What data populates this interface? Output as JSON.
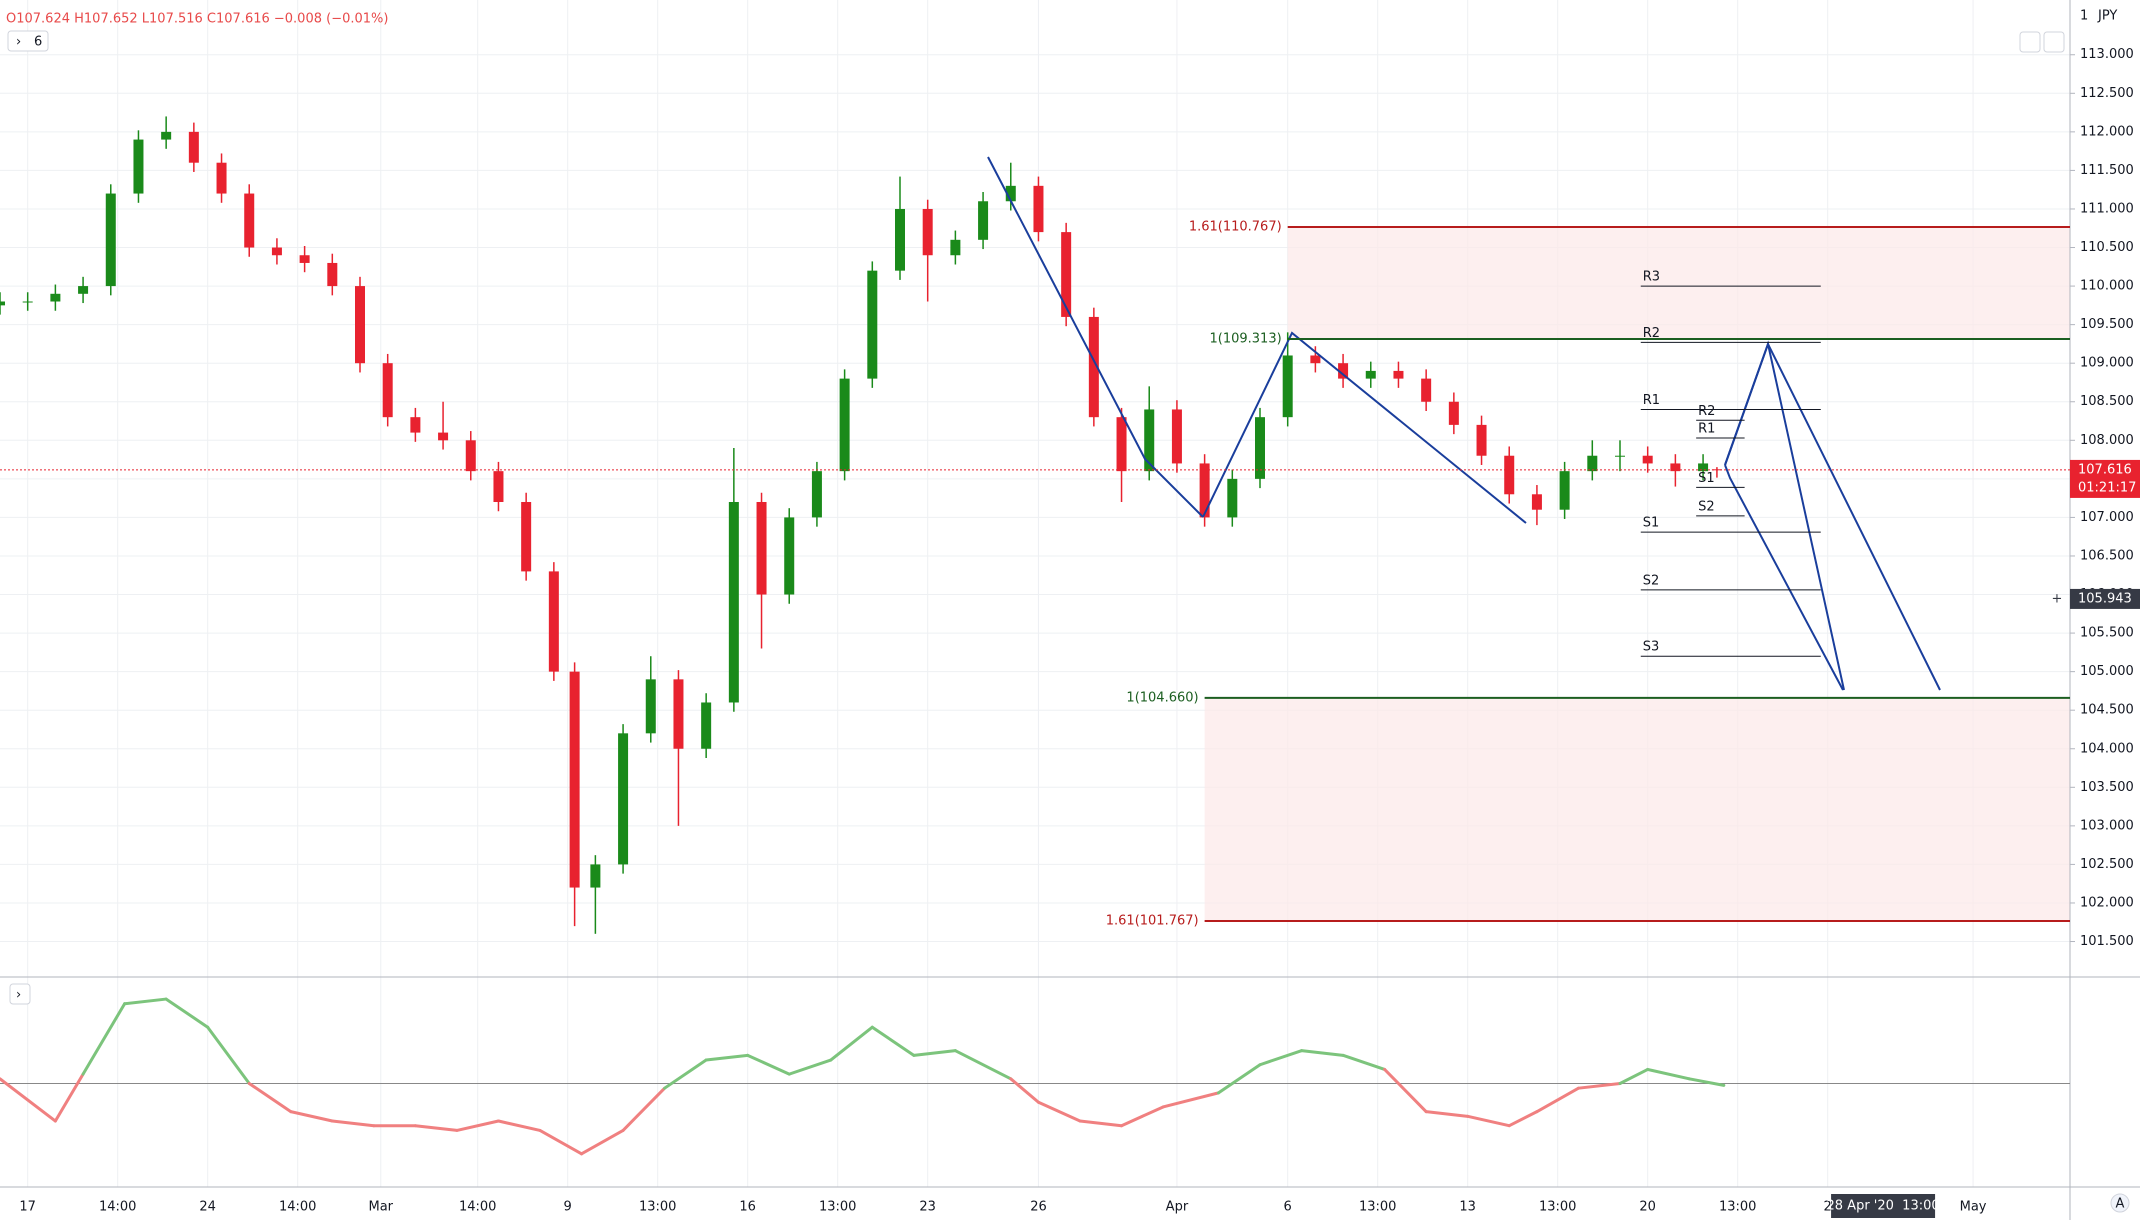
{
  "chart_data": {
    "type": "candlestick",
    "ohlc_text": "O107.624 H107.652 L107.516 C107.616 −0.008 (−0.01%)",
    "interval_button": "6",
    "currency": "JPY",
    "scale_mark": "1",
    "up_color": "#26a69a",
    "candle_up_color": "#1a8a1a",
    "candle_down_color": "#e8222f",
    "x": [
      0,
      4,
      8,
      12,
      16,
      20,
      24,
      28,
      32,
      36,
      40,
      44,
      48,
      52,
      56,
      60,
      64,
      68,
      72,
      76,
      80,
      83,
      86,
      90,
      94,
      98,
      102,
      106,
      110,
      114,
      118,
      122,
      126,
      130,
      134,
      138,
      142,
      146,
      150,
      154,
      158,
      162,
      166,
      170,
      174,
      178,
      182,
      186,
      190,
      194,
      198,
      202,
      206,
      210,
      214,
      218,
      222,
      226,
      230,
      234,
      238,
      242,
      246,
      248
    ],
    "open": [
      109.75,
      109.8,
      109.8,
      109.9,
      110.0,
      111.2,
      111.9,
      112.0,
      111.6,
      111.2,
      110.5,
      110.4,
      110.3,
      110.0,
      109.0,
      108.3,
      108.1,
      108.0,
      107.6,
      107.2,
      106.3,
      105.0,
      102.2,
      102.5,
      104.2,
      104.9,
      104.0,
      104.6,
      107.2,
      106.0,
      107.0,
      107.6,
      108.8,
      110.2,
      111.0,
      110.4,
      110.6,
      111.1,
      111.3,
      110.7,
      109.6,
      108.3,
      107.6,
      108.4,
      107.7,
      107.0,
      107.5,
      108.3,
      109.1,
      109.0,
      108.8,
      108.9,
      108.8,
      108.5,
      108.2,
      107.8,
      107.3,
      107.1,
      107.6,
      107.8,
      107.8,
      107.7,
      107.6,
      107.624
    ],
    "high": [
      109.92,
      109.92,
      110.02,
      110.12,
      111.32,
      112.02,
      112.2,
      112.12,
      111.72,
      111.32,
      110.62,
      110.52,
      110.42,
      110.12,
      109.12,
      108.42,
      108.5,
      108.12,
      107.72,
      107.32,
      106.42,
      105.12,
      102.62,
      104.32,
      105.2,
      105.02,
      104.72,
      107.9,
      107.32,
      107.12,
      107.72,
      108.92,
      110.32,
      111.42,
      111.12,
      110.72,
      111.22,
      111.6,
      111.42,
      110.82,
      109.72,
      108.42,
      108.7,
      108.52,
      107.82,
      107.62,
      108.42,
      109.4,
      109.22,
      109.12,
      109.02,
      109.02,
      108.92,
      108.62,
      108.32,
      107.92,
      107.42,
      107.72,
      108.0,
      108.0,
      107.92,
      107.82,
      107.82,
      107.652
    ],
    "low": [
      109.63,
      109.68,
      109.68,
      109.78,
      109.88,
      111.08,
      111.78,
      111.48,
      111.08,
      110.38,
      110.28,
      110.18,
      109.88,
      108.88,
      108.18,
      107.98,
      107.88,
      107.48,
      107.08,
      106.18,
      104.88,
      101.7,
      101.6,
      102.38,
      104.08,
      103.0,
      103.88,
      104.48,
      105.3,
      105.88,
      106.88,
      107.48,
      108.68,
      110.08,
      109.8,
      110.28,
      110.48,
      110.98,
      110.58,
      109.48,
      108.18,
      107.2,
      107.48,
      107.58,
      106.88,
      106.88,
      107.38,
      108.18,
      108.88,
      108.68,
      108.68,
      108.68,
      108.38,
      108.08,
      107.68,
      107.18,
      106.9,
      106.98,
      107.48,
      107.6,
      107.58,
      107.4,
      107.48,
      107.516
    ],
    "close": [
      109.8,
      109.8,
      109.9,
      110.0,
      111.2,
      111.9,
      112.0,
      111.6,
      111.2,
      110.5,
      110.4,
      110.3,
      110.0,
      109.0,
      108.3,
      108.1,
      108.0,
      107.6,
      107.2,
      106.3,
      105.0,
      102.2,
      102.5,
      104.2,
      104.9,
      104.0,
      104.6,
      107.2,
      106.0,
      107.0,
      107.6,
      108.8,
      110.2,
      111.0,
      110.4,
      110.6,
      111.1,
      111.3,
      110.7,
      109.6,
      108.3,
      107.6,
      108.4,
      107.7,
      107.0,
      107.5,
      108.3,
      109.1,
      109.0,
      108.8,
      108.9,
      108.8,
      108.5,
      108.2,
      107.8,
      107.3,
      107.1,
      107.6,
      107.8,
      107.8,
      107.7,
      107.6,
      107.7,
      107.616
    ],
    "last_price_label": "107.616",
    "countdown_label": "01:21:17",
    "crosshair_price_label": "105.943",
    "crosshair_price": 105.943,
    "crosshair_time_label": "28 Apr '20  13:00",
    "crosshair_x": 272,
    "xlim": [
      0,
      299
    ],
    "xticks": [
      {
        "value": 4,
        "label": "17"
      },
      {
        "value": 17,
        "label": "14:00"
      },
      {
        "value": 30,
        "label": "24"
      },
      {
        "value": 43,
        "label": "14:00"
      },
      {
        "value": 55,
        "label": "Mar"
      },
      {
        "value": 69,
        "label": "14:00"
      },
      {
        "value": 82,
        "label": "9"
      },
      {
        "value": 95,
        "label": "13:00"
      },
      {
        "value": 108,
        "label": "16"
      },
      {
        "value": 121,
        "label": "13:00"
      },
      {
        "value": 134,
        "label": "23"
      },
      {
        "value": 150,
        "label": "26"
      },
      {
        "value": 170,
        "label": "Apr"
      },
      {
        "value": 186,
        "label": "6"
      },
      {
        "value": 199,
        "label": "13:00"
      },
      {
        "value": 212,
        "label": "13"
      },
      {
        "value": 225,
        "label": "13:00"
      },
      {
        "value": 238,
        "label": "20"
      },
      {
        "value": 251,
        "label": "13:00"
      },
      {
        "value": 264,
        "label": "2"
      },
      {
        "value": 285,
        "label": "May"
      }
    ],
    "ylim": [
      101.04,
      113.71
    ],
    "yticks": [
      {
        "value": 101.5,
        "label": "101.500"
      },
      {
        "value": 102,
        "label": "102.000"
      },
      {
        "value": 102.5,
        "label": "102.500"
      },
      {
        "value": 103,
        "label": "103.000"
      },
      {
        "value": 103.5,
        "label": "103.500"
      },
      {
        "value": 104,
        "label": "104.000"
      },
      {
        "value": 104.5,
        "label": "104.500"
      },
      {
        "value": 105,
        "label": "105.000"
      },
      {
        "value": 105.5,
        "label": "105.500"
      },
      {
        "value": 106,
        "label": "106.000"
      },
      {
        "value": 106.5,
        "label": "106.500"
      },
      {
        "value": 107,
        "label": "107.000"
      },
      {
        "value": 107.5,
        "label": "107.500"
      },
      {
        "value": 108,
        "label": "108.000"
      },
      {
        "value": 108.5,
        "label": "108.500"
      },
      {
        "value": 109,
        "label": "109.000"
      },
      {
        "value": 109.5,
        "label": "109.500"
      },
      {
        "value": 110,
        "label": "110.000"
      },
      {
        "value": 110.5,
        "label": "110.500"
      },
      {
        "value": 111,
        "label": "111.000"
      },
      {
        "value": 111.5,
        "label": "111.500"
      },
      {
        "value": 112,
        "label": "112.000"
      },
      {
        "value": 112.5,
        "label": "112.500"
      },
      {
        "value": 113,
        "label": "113.000"
      }
    ],
    "grid": true,
    "fib_levels": [
      {
        "label": "1.61(110.767)",
        "value": 110.767,
        "start": 186,
        "color": "#b71c1c"
      },
      {
        "label": "1(109.313)",
        "value": 109.313,
        "start": 186,
        "color": "#1b5e20"
      },
      {
        "label": "1(104.660)",
        "value": 104.66,
        "start": 174,
        "color": "#1b5e20"
      },
      {
        "label": "1.61(101.767)",
        "value": 101.767,
        "start": 174,
        "color": "#b71c1c"
      }
    ],
    "pivots": [
      {
        "label": "R3",
        "value": 110.0,
        "start": 237,
        "end": 263
      },
      {
        "label": "R2",
        "value": 109.27,
        "start": 237,
        "end": 263
      },
      {
        "label": "R1",
        "value": 108.4,
        "start": 237,
        "end": 263
      },
      {
        "label": "S1",
        "value": 106.81,
        "start": 237,
        "end": 263
      },
      {
        "label": "S2",
        "value": 106.06,
        "start": 237,
        "end": 263
      },
      {
        "label": "S3",
        "value": 105.2,
        "start": 237,
        "end": 263
      },
      {
        "label": "R2",
        "value": 108.26,
        "start": 245,
        "end": 252
      },
      {
        "label": "R1",
        "value": 108.03,
        "start": 245,
        "end": 252
      },
      {
        "label": "S1",
        "value": 107.39,
        "start": 245,
        "end": 252
      },
      {
        "label": "S2",
        "value": 107.02,
        "start": 245,
        "end": 252
      }
    ],
    "oscillator": {
      "x": [
        0,
        8,
        12,
        18,
        24,
        30,
        36,
        42,
        48,
        54,
        60,
        66,
        72,
        78,
        84,
        90,
        96,
        102,
        108,
        114,
        120,
        126,
        132,
        138,
        146,
        150,
        156,
        162,
        168,
        176,
        182,
        188,
        194,
        200,
        206,
        212,
        218,
        222,
        228,
        234,
        238,
        244,
        249
      ],
      "values": [
        0.05,
        -0.4,
        0.1,
        0.85,
        0.9,
        0.6,
        0.0,
        -0.3,
        -0.4,
        -0.45,
        -0.45,
        -0.5,
        -0.4,
        -0.5,
        -0.75,
        -0.5,
        -0.05,
        0.25,
        0.3,
        0.1,
        0.25,
        0.6,
        0.3,
        0.35,
        0.05,
        -0.2,
        -0.4,
        -0.45,
        -0.25,
        -0.1,
        0.2,
        0.35,
        0.3,
        0.15,
        -0.3,
        -0.35,
        -0.45,
        -0.3,
        -0.05,
        0.0,
        0.15,
        0.05,
        -0.02
      ],
      "ylim": [
        -1.05,
        1.05
      ],
      "zero": 0,
      "positive_color": "#7cc47c",
      "negative_color": "#f08080"
    }
  }
}
